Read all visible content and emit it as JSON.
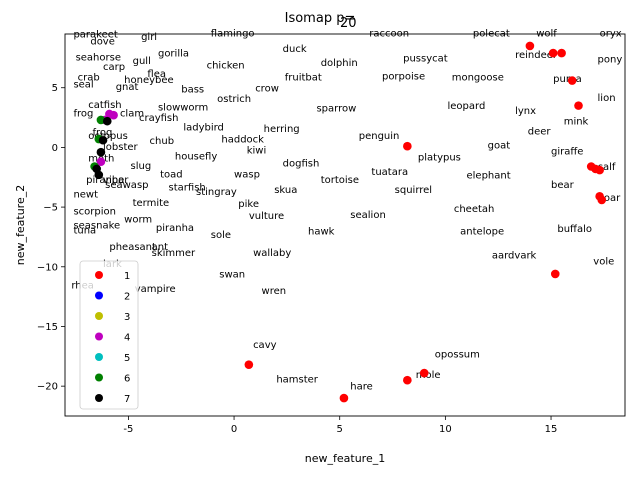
{
  "chart_data": {
    "type": "scatter",
    "title": "Isomap p=",
    "title_suffix": "20",
    "xlabel": "new_feature_1",
    "ylabel": "new_feature_2",
    "xlim": [
      -8,
      18.5
    ],
    "ylim": [
      -22.5,
      9.5
    ],
    "xticks": [
      -5,
      0,
      5,
      10,
      15
    ],
    "yticks": [
      -20,
      -15,
      -10,
      -5,
      0,
      5
    ],
    "grid": false,
    "legend": {
      "placement": "lower-left",
      "entries": [
        {
          "name": "1",
          "color": "#ff0000"
        },
        {
          "name": "2",
          "color": "#0000ff"
        },
        {
          "name": "3",
          "color": "#bfbf00"
        },
        {
          "name": "4",
          "color": "#bf00bf"
        },
        {
          "name": "5",
          "color": "#00bfbf"
        },
        {
          "name": "6",
          "color": "#008000"
        },
        {
          "name": "7",
          "color": "#000000"
        }
      ]
    },
    "points": [
      {
        "x": 14.0,
        "y": 8.5,
        "c": 0
      },
      {
        "x": 15.1,
        "y": 7.9,
        "c": 0
      },
      {
        "x": 15.5,
        "y": 7.9,
        "c": 0
      },
      {
        "x": 16.0,
        "y": 5.6,
        "c": 0
      },
      {
        "x": 16.3,
        "y": 3.5,
        "c": 0
      },
      {
        "x": 8.2,
        "y": 0.1,
        "c": 0
      },
      {
        "x": 16.9,
        "y": -1.6,
        "c": 0
      },
      {
        "x": 17.1,
        "y": -1.8,
        "c": 0
      },
      {
        "x": 17.3,
        "y": -1.9,
        "c": 0
      },
      {
        "x": 17.3,
        "y": -4.1,
        "c": 0
      },
      {
        "x": 17.4,
        "y": -4.4,
        "c": 0
      },
      {
        "x": 15.2,
        "y": -10.6,
        "c": 0
      },
      {
        "x": 0.7,
        "y": -18.2,
        "c": 0
      },
      {
        "x": 9.0,
        "y": -18.9,
        "c": 0
      },
      {
        "x": 8.2,
        "y": -19.5,
        "c": 0
      },
      {
        "x": 5.2,
        "y": -21.0,
        "c": 0
      },
      {
        "x": -5.9,
        "y": 2.8,
        "c": 3
      },
      {
        "x": -5.7,
        "y": 2.7,
        "c": 3
      },
      {
        "x": -6.1,
        "y": 2.3,
        "c": 3
      },
      {
        "x": -6.3,
        "y": -1.2,
        "c": 3
      },
      {
        "x": -6.3,
        "y": 2.3,
        "c": 5
      },
      {
        "x": -6.4,
        "y": 0.7,
        "c": 5
      },
      {
        "x": -6.6,
        "y": -1.6,
        "c": 5
      },
      {
        "x": -6.0,
        "y": 2.2,
        "c": 6
      },
      {
        "x": -6.2,
        "y": 0.6,
        "c": 6
      },
      {
        "x": -6.3,
        "y": -0.4,
        "c": 6
      },
      {
        "x": -6.5,
        "y": -1.8,
        "c": 6
      },
      {
        "x": -6.4,
        "y": -2.3,
        "c": 6
      }
    ],
    "annotations": [
      {
        "t": "parakeet",
        "x": -7.6,
        "y": 9.2
      },
      {
        "t": "girl",
        "x": -4.4,
        "y": 9.0
      },
      {
        "t": "flamingo",
        "x": -1.1,
        "y": 9.3
      },
      {
        "t": "raccoon",
        "x": 6.4,
        "y": 9.3
      },
      {
        "t": "polecat",
        "x": 11.3,
        "y": 9.3
      },
      {
        "t": "wolf",
        "x": 14.3,
        "y": 9.3
      },
      {
        "t": "oryx",
        "x": 17.3,
        "y": 9.3
      },
      {
        "t": "dove",
        "x": -6.8,
        "y": 8.6
      },
      {
        "t": "duck",
        "x": 2.3,
        "y": 8.0
      },
      {
        "t": "gorilla",
        "x": -3.6,
        "y": 7.6
      },
      {
        "t": "seahorse",
        "x": -7.5,
        "y": 7.3
      },
      {
        "t": "gull",
        "x": -4.8,
        "y": 7.0
      },
      {
        "t": "pussycat",
        "x": 8.0,
        "y": 7.2
      },
      {
        "t": "reindeer",
        "x": 13.3,
        "y": 7.5
      },
      {
        "t": "pony",
        "x": 17.2,
        "y": 7.1
      },
      {
        "t": "carp",
        "x": -6.2,
        "y": 6.5
      },
      {
        "t": "dolphin",
        "x": 4.1,
        "y": 6.8
      },
      {
        "t": "chicken",
        "x": -1.3,
        "y": 6.6
      },
      {
        "t": "flea",
        "x": -4.1,
        "y": 5.9
      },
      {
        "t": "crab",
        "x": -7.4,
        "y": 5.6
      },
      {
        "t": "honeybee",
        "x": -5.2,
        "y": 5.4
      },
      {
        "t": "fruitbat",
        "x": 2.4,
        "y": 5.6
      },
      {
        "t": "porpoise",
        "x": 7.0,
        "y": 5.7
      },
      {
        "t": "mongoose",
        "x": 10.3,
        "y": 5.6
      },
      {
        "t": "puma",
        "x": 15.1,
        "y": 5.5
      },
      {
        "t": "seal",
        "x": -7.6,
        "y": 5.0
      },
      {
        "t": "gnat",
        "x": -5.6,
        "y": 4.8
      },
      {
        "t": "bass",
        "x": -2.5,
        "y": 4.6
      },
      {
        "t": "crow",
        "x": 1.0,
        "y": 4.7
      },
      {
        "t": "ostrich",
        "x": -0.8,
        "y": 3.8
      },
      {
        "t": "lion",
        "x": 17.2,
        "y": 3.9
      },
      {
        "t": "catfish",
        "x": -6.9,
        "y": 3.3
      },
      {
        "t": "slowworm",
        "x": -3.6,
        "y": 3.1
      },
      {
        "t": "sparrow",
        "x": 3.9,
        "y": 3.0
      },
      {
        "t": "leopard",
        "x": 10.1,
        "y": 3.2
      },
      {
        "t": "lynx",
        "x": 13.3,
        "y": 2.8
      },
      {
        "t": "frog",
        "x": -7.6,
        "y": 2.6
      },
      {
        "t": "clam",
        "x": -5.4,
        "y": 2.6
      },
      {
        "t": "crayfish",
        "x": -4.5,
        "y": 2.2
      },
      {
        "t": "mink",
        "x": 15.6,
        "y": 1.9
      },
      {
        "t": "ladybird",
        "x": -2.4,
        "y": 1.4
      },
      {
        "t": "herring",
        "x": 1.4,
        "y": 1.3
      },
      {
        "t": "deer",
        "x": 13.9,
        "y": 1.1
      },
      {
        "t": "frog",
        "x": -6.7,
        "y": 1.0
      },
      {
        "t": "octopus",
        "x": -6.9,
        "y": 0.7
      },
      {
        "t": "penguin",
        "x": 5.9,
        "y": 0.7
      },
      {
        "t": "haddock",
        "x": -0.6,
        "y": 0.4
      },
      {
        "t": "chub",
        "x": -4.0,
        "y": 0.3
      },
      {
        "t": "lobster",
        "x": -6.2,
        "y": -0.2
      },
      {
        "t": "goat",
        "x": 12.0,
        "y": -0.1
      },
      {
        "t": "kiwi",
        "x": 0.6,
        "y": -0.5
      },
      {
        "t": "giraffe",
        "x": 15.0,
        "y": -0.6
      },
      {
        "t": "housefly",
        "x": -2.8,
        "y": -1.0
      },
      {
        "t": "moth",
        "x": -6.9,
        "y": -1.2
      },
      {
        "t": "platypus",
        "x": 8.7,
        "y": -1.1
      },
      {
        "t": "dogfish",
        "x": 2.3,
        "y": -1.6
      },
      {
        "t": "slug",
        "x": -4.9,
        "y": -1.8
      },
      {
        "t": "calf",
        "x": 17.2,
        "y": -1.9
      },
      {
        "t": "tuatara",
        "x": 6.5,
        "y": -2.3
      },
      {
        "t": "elephant",
        "x": 11.0,
        "y": -2.6
      },
      {
        "t": "toad",
        "x": -3.5,
        "y": -2.5
      },
      {
        "t": "wasp",
        "x": 0.0,
        "y": -2.5
      },
      {
        "t": "tortoise",
        "x": 4.1,
        "y": -3.0
      },
      {
        "t": "piranha",
        "x": -7.0,
        "y": -3.0
      },
      {
        "t": "viper",
        "x": -6.2,
        "y": -3.0
      },
      {
        "t": "seawasp",
        "x": -6.1,
        "y": -3.4
      },
      {
        "t": "bear",
        "x": 15.0,
        "y": -3.4
      },
      {
        "t": "starfish",
        "x": -3.1,
        "y": -3.6
      },
      {
        "t": "skua",
        "x": 1.9,
        "y": -3.8
      },
      {
        "t": "squirrel",
        "x": 7.6,
        "y": -3.8
      },
      {
        "t": "stingray",
        "x": -1.8,
        "y": -4.0
      },
      {
        "t": "newt",
        "x": -7.6,
        "y": -4.2
      },
      {
        "t": "boar",
        "x": 17.2,
        "y": -4.5
      },
      {
        "t": "termite",
        "x": -4.8,
        "y": -4.9
      },
      {
        "t": "pike",
        "x": 0.2,
        "y": -5.0
      },
      {
        "t": "cheetah",
        "x": 10.4,
        "y": -5.4
      },
      {
        "t": "scorpion",
        "x": -7.6,
        "y": -5.6
      },
      {
        "t": "vulture",
        "x": 0.7,
        "y": -6.0
      },
      {
        "t": "sealion",
        "x": 5.5,
        "y": -5.9
      },
      {
        "t": "worm",
        "x": -5.2,
        "y": -6.3
      },
      {
        "t": "seasnake",
        "x": -7.6,
        "y": -6.8
      },
      {
        "t": "piranha",
        "x": -3.7,
        "y": -7.0
      },
      {
        "t": "buffalo",
        "x": 15.3,
        "y": -7.1
      },
      {
        "t": "tuna",
        "x": -7.6,
        "y": -7.2
      },
      {
        "t": "hawk",
        "x": 3.5,
        "y": -7.3
      },
      {
        "t": "antelope",
        "x": 10.7,
        "y": -7.3
      },
      {
        "t": "sole",
        "x": -1.1,
        "y": -7.6
      },
      {
        "t": "pheasant",
        "x": -5.9,
        "y": -8.6
      },
      {
        "t": "ant",
        "x": -3.9,
        "y": -8.6
      },
      {
        "t": "skimmer",
        "x": -3.9,
        "y": -9.1
      },
      {
        "t": "wallaby",
        "x": 0.9,
        "y": -9.1
      },
      {
        "t": "aardvark",
        "x": 12.2,
        "y": -9.3
      },
      {
        "t": "vole",
        "x": 17.0,
        "y": -9.8
      },
      {
        "t": "lark",
        "x": -6.2,
        "y": -10.0
      },
      {
        "t": "swan",
        "x": -0.7,
        "y": -10.9
      },
      {
        "t": "rhea",
        "x": -7.7,
        "y": -11.8
      },
      {
        "t": "vampire",
        "x": -4.7,
        "y": -12.1
      },
      {
        "t": "wren",
        "x": 1.3,
        "y": -12.3
      },
      {
        "t": "cavy",
        "x": 0.9,
        "y": -16.8
      },
      {
        "t": "opossum",
        "x": 9.5,
        "y": -17.6
      },
      {
        "t": "mole",
        "x": 8.6,
        "y": -19.3
      },
      {
        "t": "hamster",
        "x": 2.0,
        "y": -19.7
      },
      {
        "t": "hare",
        "x": 5.5,
        "y": -20.3
      }
    ]
  }
}
